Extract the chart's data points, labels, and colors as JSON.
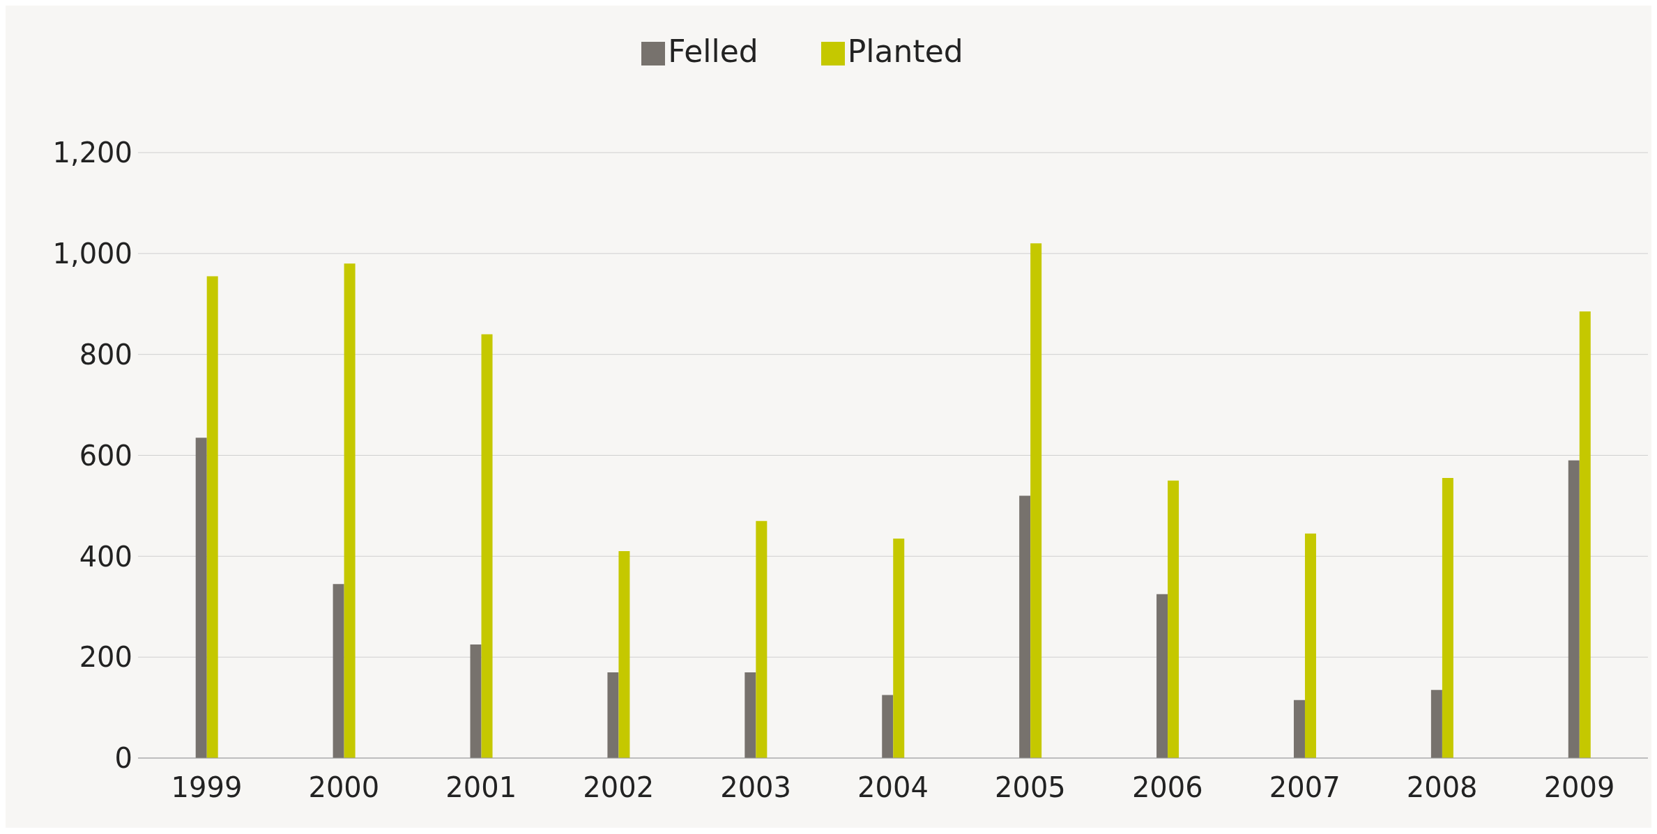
{
  "chart_data": {
    "type": "bar",
    "categories": [
      "1999",
      "2000",
      "2001",
      "2002",
      "2003",
      "2004",
      "2005",
      "2006",
      "2007",
      "2008",
      "2009"
    ],
    "series": [
      {
        "name": "Felled",
        "color": "#77726d",
        "values": [
          635,
          345,
          225,
          170,
          170,
          125,
          520,
          325,
          115,
          135,
          590
        ]
      },
      {
        "name": "Planted",
        "color": "#c5c800",
        "values": [
          955,
          980,
          840,
          410,
          470,
          435,
          1020,
          550,
          445,
          555,
          885
        ]
      }
    ],
    "ylim": [
      0,
      1200
    ],
    "yticks": [
      0,
      {
        "value": 200,
        "label": "200"
      },
      {
        "value": 400,
        "label": "400"
      },
      {
        "value": 600,
        "label": "600"
      },
      {
        "value": 800,
        "label": "800"
      },
      {
        "value": 1000,
        "label": "1,000"
      },
      {
        "value": 1200,
        "label": "1,200"
      }
    ],
    "grid": "y",
    "legend": "top"
  }
}
